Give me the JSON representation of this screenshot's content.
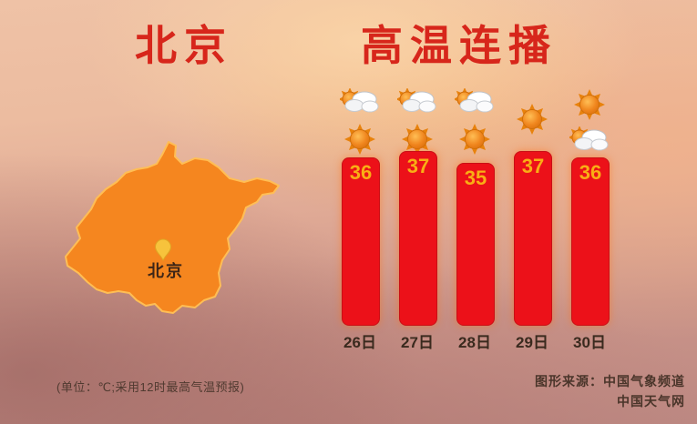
{
  "title": {
    "location": "北京",
    "main": "高温连播"
  },
  "map": {
    "label": "北京",
    "fill_color": "#F5861F",
    "border_color": "#FFBE55",
    "pin_color": "#F7C33C"
  },
  "chart_data": {
    "type": "bar",
    "title": "北京 高温连播",
    "unit": "℃",
    "categories": [
      "26日",
      "27日",
      "28日",
      "29日",
      "30日"
    ],
    "values": [
      36,
      37,
      35,
      37,
      36
    ],
    "icons": [
      [
        "sun-behind-cloud",
        "sun"
      ],
      [
        "sun-behind-cloud",
        "sun"
      ],
      [
        "sun-behind-cloud",
        "sun"
      ],
      [
        "sun"
      ],
      [
        "sun",
        "sun-behind-cloud"
      ]
    ],
    "bar_color": "#EC1119",
    "value_color": "#F9AE15",
    "xlabel": "",
    "ylabel": "",
    "legend": false,
    "grid": false
  },
  "footer": {
    "note": "(单位：℃;采用12时最高气温预报)",
    "source_line1": "图形来源：中国气象频道",
    "source_line2": "中国天气网"
  }
}
